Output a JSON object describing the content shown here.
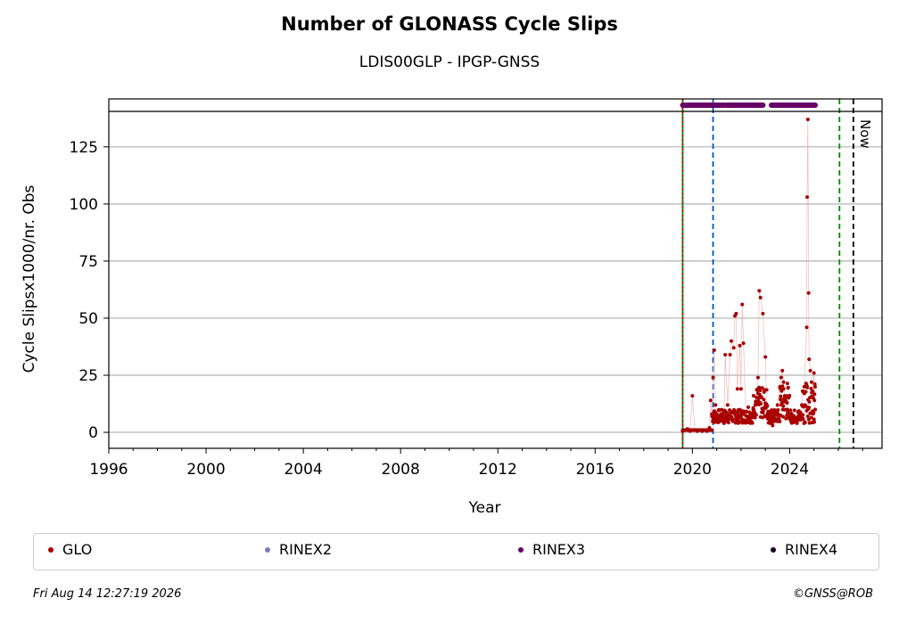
{
  "chart_data": {
    "type": "scatter",
    "title": "Number of GLONASS Cycle Slips",
    "subtitle": "LDIS00GLP - IPGP-GNSS",
    "xlabel": "Year",
    "ylabel": "Cycle Slipsx1000/nr. Obs",
    "xlim": [
      1996,
      2027.8
    ],
    "ylim": [
      -7,
      146
    ],
    "x_ticks": [
      1996,
      2000,
      2004,
      2008,
      2012,
      2016,
      2020,
      2024
    ],
    "y_ticks": [
      0,
      25,
      50,
      75,
      100,
      125
    ],
    "grid": "horizontal",
    "legend_placement": "bottom",
    "series": [
      {
        "name": "GLO",
        "color": "#aa0000",
        "points": [
          [
            2019.6,
            0.5
          ],
          [
            2019.7,
            1
          ],
          [
            2019.8,
            1.5
          ],
          [
            2019.9,
            0.5
          ],
          [
            2020.0,
            16
          ],
          [
            2020.1,
            1
          ],
          [
            2020.2,
            0.5
          ],
          [
            2020.3,
            1
          ],
          [
            2020.4,
            0.5
          ],
          [
            2020.5,
            1
          ],
          [
            2020.6,
            0.5
          ],
          [
            2020.7,
            2
          ],
          [
            2020.75,
            14
          ],
          [
            2020.8,
            8
          ],
          [
            2020.85,
            24
          ],
          [
            2020.9,
            36
          ],
          [
            2020.95,
            12
          ],
          [
            2021.0,
            6
          ],
          [
            2021.1,
            5
          ],
          [
            2021.2,
            7
          ],
          [
            2021.3,
            4
          ],
          [
            2021.35,
            34
          ],
          [
            2021.45,
            12
          ],
          [
            2021.55,
            34
          ],
          [
            2021.6,
            40
          ],
          [
            2021.7,
            37
          ],
          [
            2021.75,
            51
          ],
          [
            2021.8,
            52
          ],
          [
            2021.85,
            19
          ],
          [
            2021.95,
            38
          ],
          [
            2022.0,
            19
          ],
          [
            2022.05,
            56
          ],
          [
            2022.1,
            39
          ],
          [
            2022.2,
            9
          ],
          [
            2022.3,
            11
          ],
          [
            2022.4,
            8
          ],
          [
            2022.5,
            10
          ],
          [
            2022.6,
            12
          ],
          [
            2022.7,
            24
          ],
          [
            2022.75,
            62
          ],
          [
            2022.8,
            59
          ],
          [
            2022.9,
            52
          ],
          [
            2023.0,
            33
          ],
          [
            2023.05,
            12
          ],
          [
            2023.1,
            6
          ],
          [
            2023.2,
            4
          ],
          [
            2023.3,
            3
          ],
          [
            2023.4,
            8
          ],
          [
            2023.5,
            12
          ],
          [
            2023.6,
            20
          ],
          [
            2023.65,
            24
          ],
          [
            2023.7,
            27
          ],
          [
            2023.75,
            22
          ],
          [
            2023.8,
            16
          ],
          [
            2023.9,
            10
          ],
          [
            2024.0,
            8
          ],
          [
            2024.1,
            7
          ],
          [
            2024.2,
            5
          ],
          [
            2024.3,
            4
          ],
          [
            2024.4,
            6
          ],
          [
            2024.5,
            12
          ],
          [
            2024.55,
            18
          ],
          [
            2024.6,
            20
          ],
          [
            2024.7,
            46
          ],
          [
            2024.72,
            103
          ],
          [
            2024.75,
            137
          ],
          [
            2024.78,
            61
          ],
          [
            2024.8,
            32
          ],
          [
            2024.85,
            27
          ],
          [
            2024.9,
            22
          ],
          [
            2024.95,
            18
          ],
          [
            2025.0,
            26
          ],
          [
            2025.02,
            14
          ],
          [
            2025.05,
            10
          ]
        ]
      },
      {
        "name": "RINEX2",
        "color": "#7a7ab8",
        "points": []
      },
      {
        "name": "RINEX3",
        "color": "#660066",
        "ranges": [
          [
            2019.6,
            2021.3
          ],
          [
            2021.4,
            2022.9
          ],
          [
            2023.25,
            2025.05
          ]
        ],
        "y": 146
      },
      {
        "name": "RINEX4",
        "color": "#1a0022",
        "points": []
      }
    ],
    "vertical_lines": [
      {
        "x": 2019.6,
        "color": "#008800",
        "style": "solid"
      },
      {
        "x": 2019.6,
        "color": "#cc0000",
        "style": "dotted"
      },
      {
        "x": 2020.85,
        "color": "#0055bb",
        "style": "dashed"
      },
      {
        "x": 2026.05,
        "color": "#008800",
        "style": "dashed"
      },
      {
        "x": 2026.62,
        "color": "#000000",
        "style": "dashed"
      }
    ],
    "annotation": "Now"
  },
  "footer": {
    "timestamp": "Fri Aug 14 12:27:19 2026",
    "copyright": "©GNSS@ROB"
  }
}
